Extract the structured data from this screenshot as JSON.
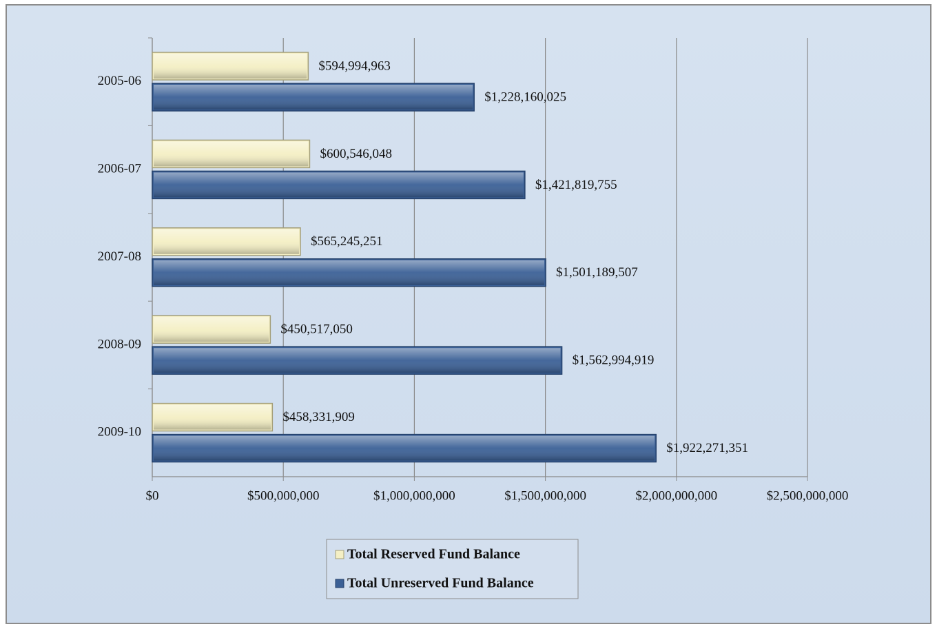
{
  "chart_data": {
    "type": "hbar",
    "categories": [
      "2005-06",
      "2006-07",
      "2007-08",
      "2008-09",
      "2009-10"
    ],
    "series": [
      {
        "name": "Total Reserved Fund Balance",
        "color": "#f4efc4",
        "values": [
          594994963,
          600546048,
          565245251,
          450517050,
          458331909
        ],
        "value_labels": [
          "$594,994,963",
          "$600,546,048",
          "$565,245,251",
          "$450,517,050",
          "$458,331,909"
        ]
      },
      {
        "name": "Total Unreserved Fund Balance",
        "color": "#3b6096",
        "values": [
          1228160025,
          1421819755,
          1501189507,
          1562994919,
          1922271351
        ],
        "value_labels": [
          "$1,228,160,025",
          "$1,421,819,755",
          "$1,501,189,507",
          "$1,562,994,919",
          "$1,922,271,351"
        ]
      }
    ],
    "xlim": [
      0,
      2500000000
    ],
    "xticks": [
      {
        "value": 0,
        "label": "$0"
      },
      {
        "value": 500000000,
        "label": "$500,000,000"
      },
      {
        "value": 1000000000,
        "label": "$1,000,000,000"
      },
      {
        "value": 1500000000,
        "label": "$1,500,000,000"
      },
      {
        "value": 2000000000,
        "label": "$2,000,000,000"
      },
      {
        "value": 2500000000,
        "label": "$2,500,000,000"
      }
    ],
    "grid": true,
    "legend": "bottom"
  }
}
